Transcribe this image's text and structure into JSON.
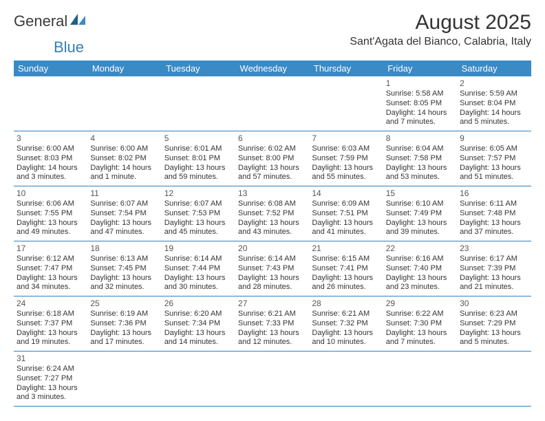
{
  "logo": {
    "text1": "General",
    "text2": "Blue"
  },
  "title": "August 2025",
  "location": "Sant'Agata del Bianco, Calabria, Italy",
  "colors": {
    "header_bg": "#3a8ac6",
    "header_fg": "#ffffff",
    "rule": "#2f7fbf",
    "logo_accent": "#2f7fbf"
  },
  "dow": [
    "Sunday",
    "Monday",
    "Tuesday",
    "Wednesday",
    "Thursday",
    "Friday",
    "Saturday"
  ],
  "weeks": [
    [
      null,
      null,
      null,
      null,
      null,
      {
        "n": "1",
        "sr": "Sunrise: 5:58 AM",
        "ss": "Sunset: 8:05 PM",
        "d1": "Daylight: 14 hours",
        "d2": "and 7 minutes."
      },
      {
        "n": "2",
        "sr": "Sunrise: 5:59 AM",
        "ss": "Sunset: 8:04 PM",
        "d1": "Daylight: 14 hours",
        "d2": "and 5 minutes."
      }
    ],
    [
      {
        "n": "3",
        "sr": "Sunrise: 6:00 AM",
        "ss": "Sunset: 8:03 PM",
        "d1": "Daylight: 14 hours",
        "d2": "and 3 minutes."
      },
      {
        "n": "4",
        "sr": "Sunrise: 6:00 AM",
        "ss": "Sunset: 8:02 PM",
        "d1": "Daylight: 14 hours",
        "d2": "and 1 minute."
      },
      {
        "n": "5",
        "sr": "Sunrise: 6:01 AM",
        "ss": "Sunset: 8:01 PM",
        "d1": "Daylight: 13 hours",
        "d2": "and 59 minutes."
      },
      {
        "n": "6",
        "sr": "Sunrise: 6:02 AM",
        "ss": "Sunset: 8:00 PM",
        "d1": "Daylight: 13 hours",
        "d2": "and 57 minutes."
      },
      {
        "n": "7",
        "sr": "Sunrise: 6:03 AM",
        "ss": "Sunset: 7:59 PM",
        "d1": "Daylight: 13 hours",
        "d2": "and 55 minutes."
      },
      {
        "n": "8",
        "sr": "Sunrise: 6:04 AM",
        "ss": "Sunset: 7:58 PM",
        "d1": "Daylight: 13 hours",
        "d2": "and 53 minutes."
      },
      {
        "n": "9",
        "sr": "Sunrise: 6:05 AM",
        "ss": "Sunset: 7:57 PM",
        "d1": "Daylight: 13 hours",
        "d2": "and 51 minutes."
      }
    ],
    [
      {
        "n": "10",
        "sr": "Sunrise: 6:06 AM",
        "ss": "Sunset: 7:55 PM",
        "d1": "Daylight: 13 hours",
        "d2": "and 49 minutes."
      },
      {
        "n": "11",
        "sr": "Sunrise: 6:07 AM",
        "ss": "Sunset: 7:54 PM",
        "d1": "Daylight: 13 hours",
        "d2": "and 47 minutes."
      },
      {
        "n": "12",
        "sr": "Sunrise: 6:07 AM",
        "ss": "Sunset: 7:53 PM",
        "d1": "Daylight: 13 hours",
        "d2": "and 45 minutes."
      },
      {
        "n": "13",
        "sr": "Sunrise: 6:08 AM",
        "ss": "Sunset: 7:52 PM",
        "d1": "Daylight: 13 hours",
        "d2": "and 43 minutes."
      },
      {
        "n": "14",
        "sr": "Sunrise: 6:09 AM",
        "ss": "Sunset: 7:51 PM",
        "d1": "Daylight: 13 hours",
        "d2": "and 41 minutes."
      },
      {
        "n": "15",
        "sr": "Sunrise: 6:10 AM",
        "ss": "Sunset: 7:49 PM",
        "d1": "Daylight: 13 hours",
        "d2": "and 39 minutes."
      },
      {
        "n": "16",
        "sr": "Sunrise: 6:11 AM",
        "ss": "Sunset: 7:48 PM",
        "d1": "Daylight: 13 hours",
        "d2": "and 37 minutes."
      }
    ],
    [
      {
        "n": "17",
        "sr": "Sunrise: 6:12 AM",
        "ss": "Sunset: 7:47 PM",
        "d1": "Daylight: 13 hours",
        "d2": "and 34 minutes."
      },
      {
        "n": "18",
        "sr": "Sunrise: 6:13 AM",
        "ss": "Sunset: 7:45 PM",
        "d1": "Daylight: 13 hours",
        "d2": "and 32 minutes."
      },
      {
        "n": "19",
        "sr": "Sunrise: 6:14 AM",
        "ss": "Sunset: 7:44 PM",
        "d1": "Daylight: 13 hours",
        "d2": "and 30 minutes."
      },
      {
        "n": "20",
        "sr": "Sunrise: 6:14 AM",
        "ss": "Sunset: 7:43 PM",
        "d1": "Daylight: 13 hours",
        "d2": "and 28 minutes."
      },
      {
        "n": "21",
        "sr": "Sunrise: 6:15 AM",
        "ss": "Sunset: 7:41 PM",
        "d1": "Daylight: 13 hours",
        "d2": "and 26 minutes."
      },
      {
        "n": "22",
        "sr": "Sunrise: 6:16 AM",
        "ss": "Sunset: 7:40 PM",
        "d1": "Daylight: 13 hours",
        "d2": "and 23 minutes."
      },
      {
        "n": "23",
        "sr": "Sunrise: 6:17 AM",
        "ss": "Sunset: 7:39 PM",
        "d1": "Daylight: 13 hours",
        "d2": "and 21 minutes."
      }
    ],
    [
      {
        "n": "24",
        "sr": "Sunrise: 6:18 AM",
        "ss": "Sunset: 7:37 PM",
        "d1": "Daylight: 13 hours",
        "d2": "and 19 minutes."
      },
      {
        "n": "25",
        "sr": "Sunrise: 6:19 AM",
        "ss": "Sunset: 7:36 PM",
        "d1": "Daylight: 13 hours",
        "d2": "and 17 minutes."
      },
      {
        "n": "26",
        "sr": "Sunrise: 6:20 AM",
        "ss": "Sunset: 7:34 PM",
        "d1": "Daylight: 13 hours",
        "d2": "and 14 minutes."
      },
      {
        "n": "27",
        "sr": "Sunrise: 6:21 AM",
        "ss": "Sunset: 7:33 PM",
        "d1": "Daylight: 13 hours",
        "d2": "and 12 minutes."
      },
      {
        "n": "28",
        "sr": "Sunrise: 6:21 AM",
        "ss": "Sunset: 7:32 PM",
        "d1": "Daylight: 13 hours",
        "d2": "and 10 minutes."
      },
      {
        "n": "29",
        "sr": "Sunrise: 6:22 AM",
        "ss": "Sunset: 7:30 PM",
        "d1": "Daylight: 13 hours",
        "d2": "and 7 minutes."
      },
      {
        "n": "30",
        "sr": "Sunrise: 6:23 AM",
        "ss": "Sunset: 7:29 PM",
        "d1": "Daylight: 13 hours",
        "d2": "and 5 minutes."
      }
    ],
    [
      {
        "n": "31",
        "sr": "Sunrise: 6:24 AM",
        "ss": "Sunset: 7:27 PM",
        "d1": "Daylight: 13 hours",
        "d2": "and 3 minutes."
      },
      null,
      null,
      null,
      null,
      null,
      null
    ]
  ]
}
